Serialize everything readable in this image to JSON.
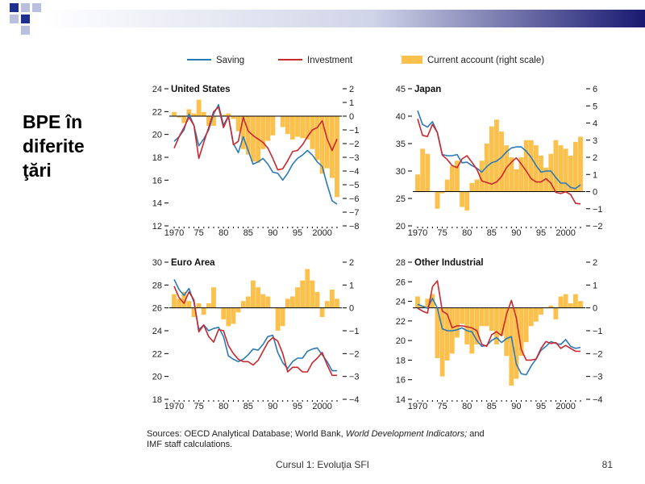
{
  "slide": {
    "title_lines": [
      "BPE în",
      "diferite",
      "ţări"
    ],
    "footer_title": "Cursul 1: Evoluţia SFI",
    "slide_number": "81",
    "colors": {
      "bar_dark": "#191970",
      "bar_light": "#c8cde0",
      "squares": "#1f2f8f"
    }
  },
  "legend": [
    {
      "label": "Saving",
      "kind": "line",
      "color": "#2a7ab8"
    },
    {
      "label": "Investment",
      "kind": "line",
      "color": "#c8282e"
    },
    {
      "label": "Current account (right scale)",
      "kind": "bar",
      "color": "#fcc04d"
    }
  ],
  "sources": {
    "part1": "Sources: OECD Analytical Database; World Bank,",
    "italic": "World Development Indicators;",
    "part2": "and",
    "line2": "IMF staff calculations."
  },
  "chart_data": [
    {
      "type": "bar+line",
      "title": "United States",
      "x_ticks": [
        "1970",
        "75",
        "80",
        "85",
        "90",
        "95",
        "2000"
      ],
      "ylim_left": [
        12,
        24
      ],
      "left_ticks": [
        "12",
        "14",
        "16",
        "18",
        "20",
        "22",
        "24"
      ],
      "ylim_right": [
        -8,
        2
      ],
      "right_ticks": [
        "−8",
        "−7",
        "−6",
        "−5",
        "−4",
        "−3",
        "−2",
        "−1",
        "0",
        "1",
        "2"
      ],
      "years": [
        1970,
        1971,
        1972,
        1973,
        1974,
        1975,
        1976,
        1977,
        1978,
        1979,
        1980,
        1981,
        1982,
        1983,
        1984,
        1985,
        1986,
        1987,
        1988,
        1989,
        1990,
        1991,
        1992,
        1993,
        1994,
        1995,
        1996,
        1997,
        1998,
        1999,
        2000,
        2001,
        2002,
        2003
      ],
      "current_account": [
        0.3,
        -0.1,
        -0.5,
        0.5,
        0.2,
        1.2,
        0.3,
        -0.7,
        -0.7,
        0.0,
        0.1,
        0.2,
        -0.2,
        -1.1,
        -2.4,
        -2.8,
        -3.3,
        -3.4,
        -2.4,
        -1.8,
        -1.4,
        0.0,
        -0.8,
        -1.3,
        -1.7,
        -1.5,
        -1.6,
        -1.7,
        -2.4,
        -3.2,
        -4.2,
        -3.8,
        -4.5,
        -5.9
      ],
      "series": [
        {
          "name": "Saving",
          "values": [
            19.4,
            19.8,
            20.4,
            21.8,
            20.8,
            19.0,
            19.6,
            20.4,
            21.8,
            22.6,
            20.8,
            21.6,
            19.2,
            18.4,
            19.8,
            18.6,
            17.4,
            17.6,
            17.9,
            17.4,
            16.7,
            16.6,
            16.0,
            16.6,
            17.4,
            17.9,
            18.2,
            18.6,
            18.2,
            17.6,
            17.2,
            15.6,
            14.2,
            13.9
          ]
        },
        {
          "name": "Investment",
          "values": [
            18.8,
            19.8,
            20.6,
            21.5,
            20.8,
            17.9,
            19.3,
            20.6,
            22.0,
            22.4,
            20.6,
            21.6,
            19.1,
            19.4,
            21.5,
            20.3,
            19.9,
            19.6,
            19.3,
            18.8,
            17.9,
            16.9,
            17.0,
            17.7,
            18.5,
            18.6,
            19.1,
            19.8,
            20.4,
            20.6,
            21.2,
            19.6,
            18.6,
            19.6
          ]
        }
      ]
    },
    {
      "type": "bar+line",
      "title": "Japan",
      "x_ticks": [
        "1970",
        "75",
        "80",
        "85",
        "90",
        "95",
        "2000"
      ],
      "ylim_left": [
        20,
        45
      ],
      "left_ticks": [
        "20",
        "25",
        "30",
        "35",
        "40",
        "45"
      ],
      "ylim_right": [
        -2,
        6
      ],
      "right_ticks": [
        "−2",
        "−1",
        "0",
        "1",
        "2",
        "3",
        "4",
        "5",
        "6"
      ],
      "years": [
        1970,
        1971,
        1972,
        1973,
        1974,
        1975,
        1976,
        1977,
        1978,
        1979,
        1980,
        1981,
        1982,
        1983,
        1984,
        1985,
        1986,
        1987,
        1988,
        1989,
        1990,
        1991,
        1992,
        1993,
        1994,
        1995,
        1996,
        1997,
        1998,
        1999,
        2000,
        2001,
        2002,
        2003
      ],
      "current_account": [
        1.0,
        2.5,
        2.2,
        0.0,
        -1.0,
        -0.1,
        0.7,
        1.5,
        1.8,
        -0.9,
        -1.1,
        0.5,
        0.7,
        1.8,
        2.8,
        3.8,
        4.2,
        3.5,
        2.7,
        2.0,
        1.3,
        2.0,
        3.0,
        3.0,
        2.7,
        2.1,
        1.4,
        2.2,
        3.0,
        2.7,
        2.5,
        2.1,
        2.9,
        3.2
      ],
      "series": [
        {
          "name": "Saving",
          "values": [
            41.0,
            38.5,
            38.0,
            39.0,
            37.0,
            33.0,
            32.8,
            32.8,
            33.0,
            31.5,
            31.6,
            31.0,
            30.5,
            29.8,
            30.8,
            31.5,
            31.8,
            32.5,
            33.5,
            34.2,
            34.4,
            34.4,
            33.6,
            32.5,
            31.0,
            29.8,
            30.0,
            30.0,
            28.8,
            27.8,
            27.8,
            27.0,
            26.8,
            27.5
          ]
        },
        {
          "name": "Investment",
          "values": [
            39.5,
            36.5,
            36.3,
            38.5,
            37.0,
            32.9,
            32.1,
            31.0,
            30.6,
            32.2,
            32.8,
            31.6,
            30.3,
            28.2,
            27.9,
            27.6,
            28.0,
            29.0,
            30.6,
            31.6,
            32.4,
            31.3,
            30.0,
            28.6,
            28.0,
            28.0,
            28.6,
            27.8,
            26.1,
            25.9,
            26.2,
            25.7,
            24.1,
            24.0
          ]
        }
      ]
    },
    {
      "type": "bar+line",
      "title": "Euro Area",
      "x_ticks": [
        "1970",
        "75",
        "80",
        "85",
        "90",
        "95",
        "2000"
      ],
      "ylim_left": [
        18,
        30
      ],
      "left_ticks": [
        "18",
        "20",
        "22",
        "24",
        "26",
        "28",
        "30"
      ],
      "ylim_right": [
        -4,
        2
      ],
      "right_ticks": [
        "−4",
        "−3",
        "−2",
        "−1",
        "0",
        "1",
        "2"
      ],
      "years": [
        1970,
        1971,
        1972,
        1973,
        1974,
        1975,
        1976,
        1977,
        1978,
        1979,
        1980,
        1981,
        1982,
        1983,
        1984,
        1985,
        1986,
        1987,
        1988,
        1989,
        1990,
        1991,
        1992,
        1993,
        1994,
        1995,
        1996,
        1997,
        1998,
        1999,
        2000,
        2001,
        2002,
        2003
      ],
      "current_account": [
        0.6,
        0.4,
        0.7,
        0.3,
        -0.4,
        0.2,
        -0.3,
        0.2,
        0.9,
        0.0,
        -0.5,
        -0.8,
        -0.7,
        -0.2,
        0.3,
        0.5,
        1.2,
        0.9,
        0.6,
        0.5,
        0.0,
        -1.0,
        -0.8,
        0.4,
        0.5,
        0.9,
        1.2,
        1.7,
        1.2,
        0.7,
        -0.4,
        0.3,
        0.8,
        0.4
      ],
      "series": [
        {
          "name": "Saving",
          "values": [
            28.5,
            27.6,
            27.1,
            27.7,
            26.5,
            24.1,
            24.5,
            24.0,
            24.2,
            24.3,
            23.5,
            21.8,
            21.5,
            21.3,
            21.5,
            21.9,
            22.4,
            22.3,
            22.8,
            23.5,
            23.6,
            22.1,
            21.2,
            20.7,
            21.3,
            21.6,
            21.6,
            22.2,
            22.4,
            22.5,
            21.9,
            21.3,
            20.5,
            20.5
          ]
        },
        {
          "name": "Investment",
          "values": [
            27.9,
            26.9,
            26.4,
            27.4,
            26.7,
            23.9,
            24.5,
            23.5,
            23.0,
            24.1,
            24.0,
            22.7,
            22.0,
            21.5,
            21.3,
            21.3,
            21.0,
            21.4,
            22.2,
            23.0,
            23.4,
            23.1,
            22.0,
            20.4,
            20.8,
            20.8,
            20.4,
            20.4,
            21.2,
            21.6,
            22.1,
            21.0,
            20.1,
            20.1
          ]
        }
      ]
    },
    {
      "type": "bar+line",
      "title": "Other Industrial",
      "x_ticks": [
        "1970",
        "75",
        "80",
        "85",
        "90",
        "95",
        "2000"
      ],
      "ylim_left": [
        14,
        28
      ],
      "left_ticks": [
        "14",
        "16",
        "18",
        "20",
        "22",
        "24",
        "26",
        "28"
      ],
      "ylim_right": [
        -4,
        2
      ],
      "right_ticks": [
        "−4",
        "−3",
        "−2",
        "−1",
        "0",
        "1",
        "2"
      ],
      "years": [
        1970,
        1971,
        1972,
        1973,
        1974,
        1975,
        1976,
        1977,
        1978,
        1979,
        1980,
        1981,
        1982,
        1983,
        1984,
        1985,
        1986,
        1987,
        1988,
        1989,
        1990,
        1991,
        1992,
        1993,
        1994,
        1995,
        1996,
        1997,
        1998,
        1999,
        2000,
        2001,
        2002,
        2003
      ],
      "current_account": [
        0.5,
        0.1,
        0.4,
        0.6,
        -2.2,
        -3.0,
        -2.3,
        -2.0,
        -1.3,
        -0.7,
        -1.6,
        -2.0,
        -1.6,
        -0.8,
        -0.8,
        -1.0,
        -1.6,
        -1.2,
        -2.1,
        -3.4,
        -3.1,
        -2.1,
        -1.5,
        -0.8,
        -0.6,
        -0.3,
        0.0,
        0.1,
        -0.5,
        0.5,
        0.6,
        0.2,
        0.6,
        0.3
      ],
      "series": [
        {
          "name": "Saving",
          "values": [
            23.7,
            23.5,
            23.3,
            24.3,
            23.3,
            21.2,
            21.0,
            21.0,
            21.1,
            21.3,
            21.0,
            20.9,
            20.0,
            19.4,
            19.5,
            20.0,
            20.3,
            19.8,
            20.2,
            20.4,
            17.6,
            16.6,
            16.5,
            17.4,
            18.1,
            19.0,
            19.4,
            19.9,
            19.7,
            19.6,
            20.1,
            19.4,
            19.2,
            19.3
          ]
        },
        {
          "name": "Investment",
          "values": [
            23.3,
            23.0,
            22.8,
            25.5,
            26.1,
            23.0,
            22.7,
            21.3,
            21.5,
            21.5,
            21.4,
            21.3,
            21.0,
            19.6,
            19.4,
            20.6,
            20.9,
            20.5,
            22.7,
            24.1,
            22.3,
            19.1,
            18.0,
            18.0,
            18.1,
            19.2,
            19.9,
            19.7,
            19.8,
            19.2,
            19.5,
            19.2,
            18.9,
            18.9
          ]
        }
      ]
    }
  ]
}
